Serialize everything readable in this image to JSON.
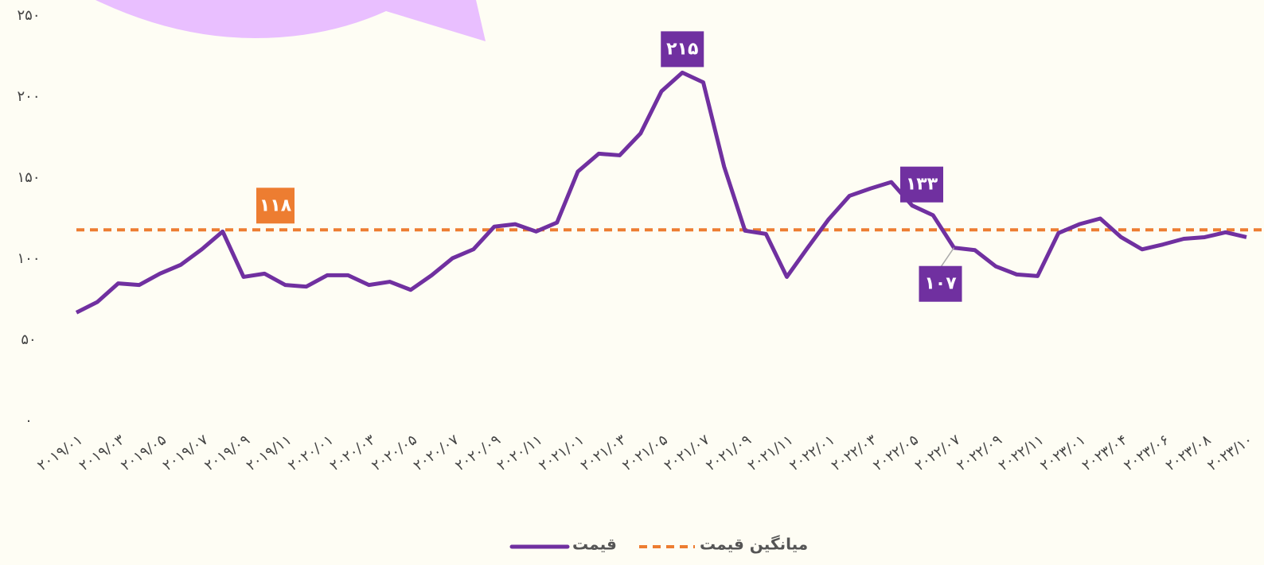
{
  "chart_data": {
    "type": "line",
    "categories": [
      "۲۰۱۹/۰۱",
      null,
      "۲۰۱۹/۰۳",
      null,
      "۲۰۱۹/۰۵",
      null,
      "۲۰۱۹/۰۷",
      null,
      "۲۰۱۹/۰۹",
      null,
      "۲۰۱۹/۱۱",
      null,
      "۲۰۲۰/۰۱",
      null,
      "۲۰۲۰/۰۳",
      null,
      "۲۰۲۰/۰۵",
      null,
      "۲۰۲۰/۰۷",
      null,
      "۲۰۲۰/۰۹",
      null,
      "۲۰۲۰/۱۱",
      null,
      "۲۰۲۱/۰۱",
      null,
      "۲۰۲۱/۰۳",
      null,
      "۲۰۲۱/۰۵",
      null,
      "۲۰۲۱/۰۷",
      null,
      "۲۰۲۱/۰۹",
      null,
      "۲۰۲۱/۱۱",
      null,
      "۲۰۲۲/۰۱",
      null,
      "۲۰۲۲/۰۳",
      null,
      "۲۰۲۲/۰۵",
      null,
      "۲۰۲۲/۰۷",
      null,
      "۲۰۲۲/۰۹",
      null,
      "۲۰۲۲/۱۱",
      null,
      "۲۰۲۳/۰۱",
      null,
      "۲۰۲۳/۰۴",
      null,
      "۲۰۲۳/۰۶",
      null,
      "۲۰۲۳/۰۸",
      null,
      "۲۰۲۳/۱۰"
    ],
    "series": [
      {
        "name": "قیمت",
        "color": "#7030a0",
        "values": [
          67,
          73.5,
          85,
          84,
          91,
          96.5,
          106,
          117,
          89,
          91,
          84,
          83,
          90,
          90,
          84,
          86,
          81,
          90,
          100.5,
          106,
          120,
          121.5,
          117,
          122.5,
          154,
          165,
          164,
          177.5,
          203.5,
          215,
          209,
          157,
          117.5,
          115.5,
          89,
          107,
          124.5,
          139,
          143.5,
          147.5,
          133,
          127,
          107,
          105.5,
          95.5,
          90.5,
          89.5,
          116,
          121.5,
          125,
          113.5,
          106,
          109,
          112.5,
          113.5,
          116.5,
          113.5
        ],
        "value_labels": [
          null,
          null,
          null,
          null,
          null,
          null,
          null,
          null,
          null,
          null,
          null,
          null,
          null,
          null,
          null,
          null,
          null,
          null,
          null,
          null,
          null,
          null,
          null,
          null,
          null,
          null,
          null,
          null,
          null,
          "۲۱۵",
          null,
          null,
          null,
          null,
          null,
          null,
          null,
          null,
          null,
          null,
          "۱۳۳",
          null,
          "۱۰۷",
          null,
          null,
          null,
          null,
          null,
          null,
          null,
          null,
          null,
          null,
          null,
          null,
          null,
          null
        ]
      }
    ],
    "average": {
      "name": "میانگین قیمت",
      "value": 118,
      "value_label": "۱۱۸",
      "color": "#ed7d31"
    },
    "ylim": [
      0,
      250
    ],
    "yticks": [
      {
        "value": 0,
        "label": "۰"
      },
      {
        "value": 50,
        "label": "۵۰"
      },
      {
        "value": 100,
        "label": "۱۰۰"
      },
      {
        "value": 150,
        "label": "۱۵۰"
      },
      {
        "value": 200,
        "label": "۲۰۰"
      },
      {
        "value": 250,
        "label": "۲۵۰"
      }
    ],
    "grid": false
  }
}
